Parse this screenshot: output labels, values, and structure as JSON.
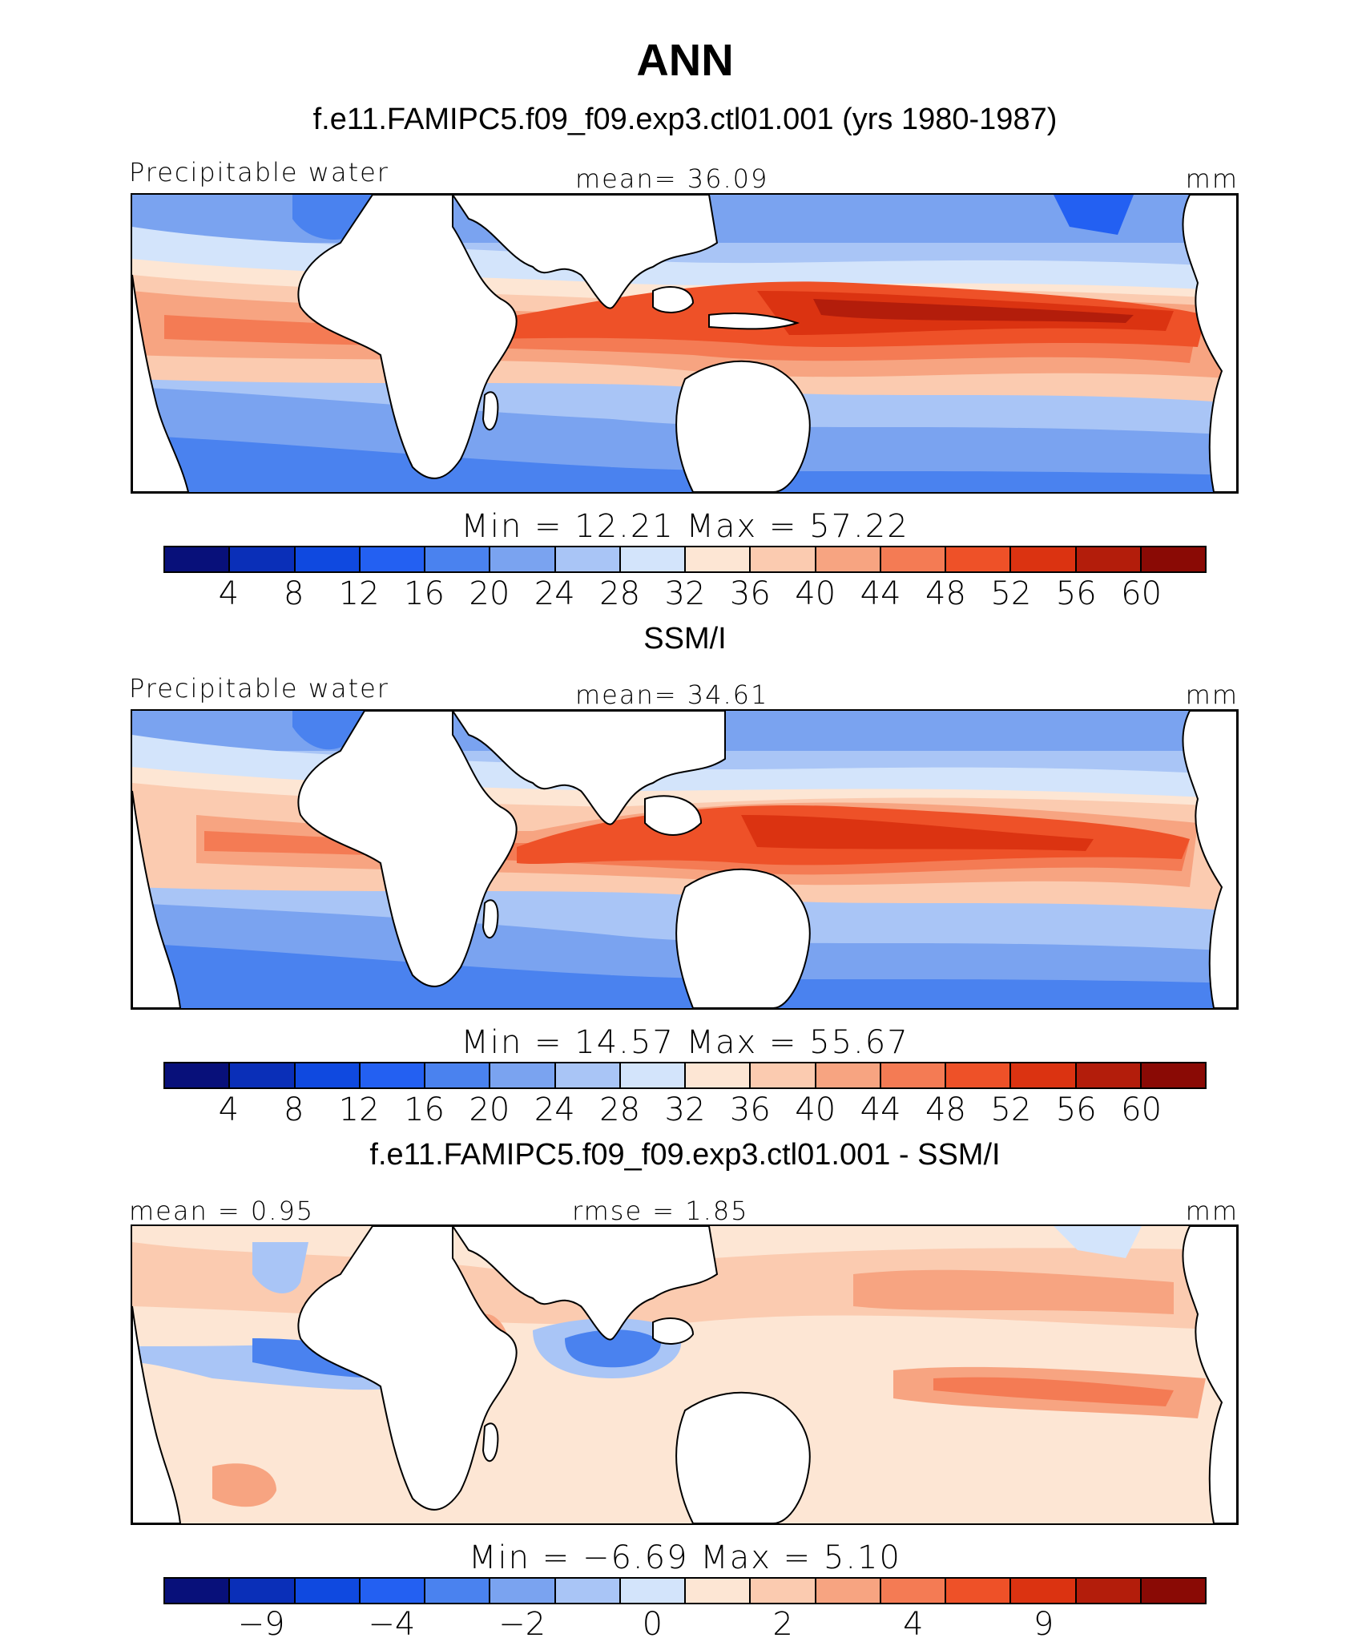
{
  "title": "ANN",
  "panels": [
    {
      "heading": "f.e11.FAMIPC5.f09_f09.exp3.ctl01.001 (yrs 1980-1987)",
      "left_label": "Precipitable water",
      "center_label": "mean=  36.09",
      "units": "mm",
      "minmax": "Min  =   12.21  Max  =   57.22"
    },
    {
      "heading": "SSM/I",
      "left_label": "Precipitable water",
      "center_label": "mean=  34.61",
      "units": "mm",
      "minmax": "Min  =   14.57  Max  =   55.67"
    },
    {
      "heading": "f.e11.FAMIPC5.f09_f09.exp3.ctl01.001 - SSM/I",
      "left_label": "mean =   0.95",
      "center_label": "rmse  =   1.85",
      "units": "mm",
      "minmax": "Min  =   −6.69  Max  =    5.10"
    }
  ],
  "colorbar_abs": {
    "colors": [
      "#08107a",
      "#0a2fb8",
      "#0f49e0",
      "#2360f2",
      "#4a82ef",
      "#7aa3f0",
      "#a9c5f6",
      "#d3e4fb",
      "#fde6d4",
      "#fbcbb0",
      "#f7a481",
      "#f47b54",
      "#ee5128",
      "#db3311",
      "#b31d0b",
      "#8a0a05"
    ],
    "labels": [
      "4",
      "8",
      "12",
      "16",
      "20",
      "24",
      "28",
      "32",
      "36",
      "40",
      "44",
      "48",
      "52",
      "56",
      "60"
    ]
  },
  "colorbar_diff": {
    "colors": [
      "#08107a",
      "#0a2fb8",
      "#0f49e0",
      "#2360f2",
      "#4a82ef",
      "#7aa3f0",
      "#a9c5f6",
      "#d3e4fb",
      "#fde6d4",
      "#fbcbb0",
      "#f7a481",
      "#f47b54",
      "#ee5128",
      "#db3311",
      "#b31d0b",
      "#8a0a05"
    ],
    "labels": [
      "−9",
      "",
      "−4",
      "",
      "−2",
      "",
      "0",
      "",
      "2",
      "",
      "4",
      "",
      "9"
    ]
  }
}
